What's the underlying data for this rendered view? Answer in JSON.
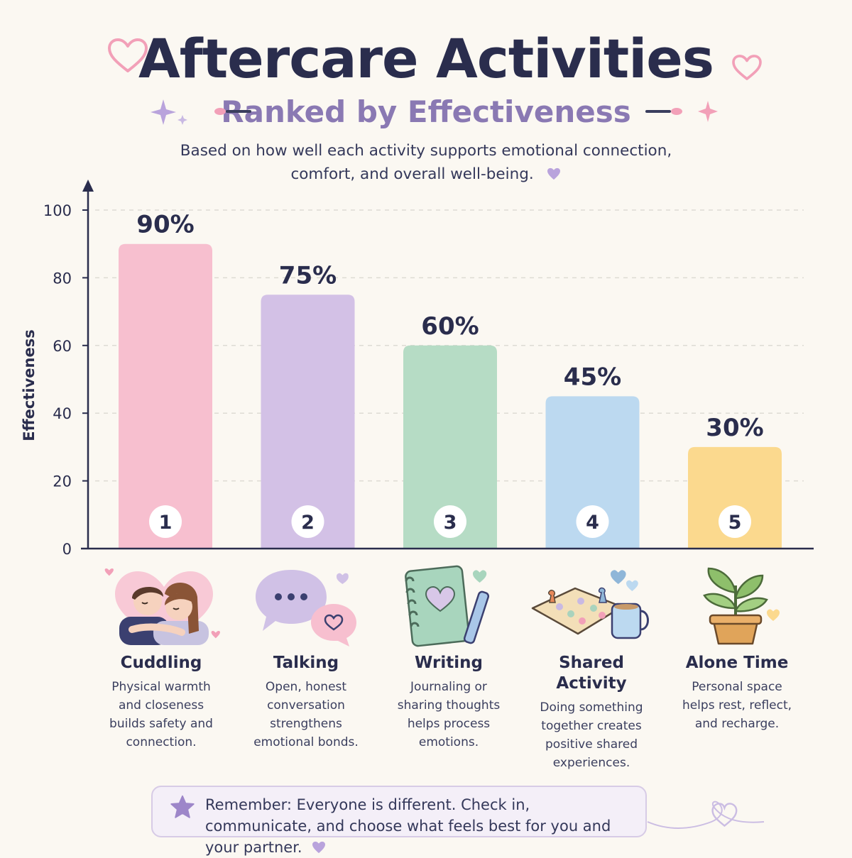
{
  "header": {
    "title": "Aftercare Activities",
    "subtitle": "Ranked by Effectiveness",
    "description": "Based on how well each activity supports emotional connection, comfort, and overall well-being."
  },
  "chart_data": {
    "type": "bar",
    "title": "Aftercare Activities",
    "subtitle": "Ranked by Effectiveness",
    "xlabel": "",
    "ylabel": "Effectiveness",
    "ylim": [
      0,
      100
    ],
    "yticks": [
      0,
      20,
      40,
      60,
      80,
      100
    ],
    "grid": true,
    "categories": [
      "Cuddling",
      "Talking",
      "Writing",
      "Shared Activity",
      "Alone Time"
    ],
    "values": [
      90,
      75,
      60,
      45,
      30
    ],
    "value_labels": [
      "90%",
      "75%",
      "60%",
      "45%",
      "30%"
    ],
    "ranks": [
      "1",
      "2",
      "3",
      "4",
      "5"
    ],
    "colors": [
      "#f7bfcf",
      "#d3c1e6",
      "#b6dcc5",
      "#bcd9f0",
      "#fbd98e"
    ]
  },
  "activities": [
    {
      "name": "Cuddling",
      "description": "Physical warmth and closeness builds safety and connection.",
      "icon": "cuddling-couple-icon"
    },
    {
      "name": "Talking",
      "description": "Open, honest conversation strengthens emotional bonds.",
      "icon": "speech-bubbles-icon"
    },
    {
      "name": "Writing",
      "description": "Journaling or sharing thoughts helps process emotions.",
      "icon": "journal-pen-icon"
    },
    {
      "name": "Shared Activity",
      "description": "Doing something together creates positive shared experiences.",
      "icon": "board-game-mug-icon"
    },
    {
      "name": "Alone Time",
      "description": "Personal space helps rest, reflect, and recharge.",
      "icon": "potted-plant-icon"
    }
  ],
  "reminder": {
    "text": "Remember: Everyone is different. Check in, communicate, and choose what feels best for you and your partner.",
    "icon": "star-icon"
  },
  "colors": {
    "title": "#2a2d4d",
    "subtitle": "#8a79b3",
    "background": "#fbf8f2",
    "accent_pink": "#f2a0b8",
    "accent_purple": "#b9a3dc"
  }
}
